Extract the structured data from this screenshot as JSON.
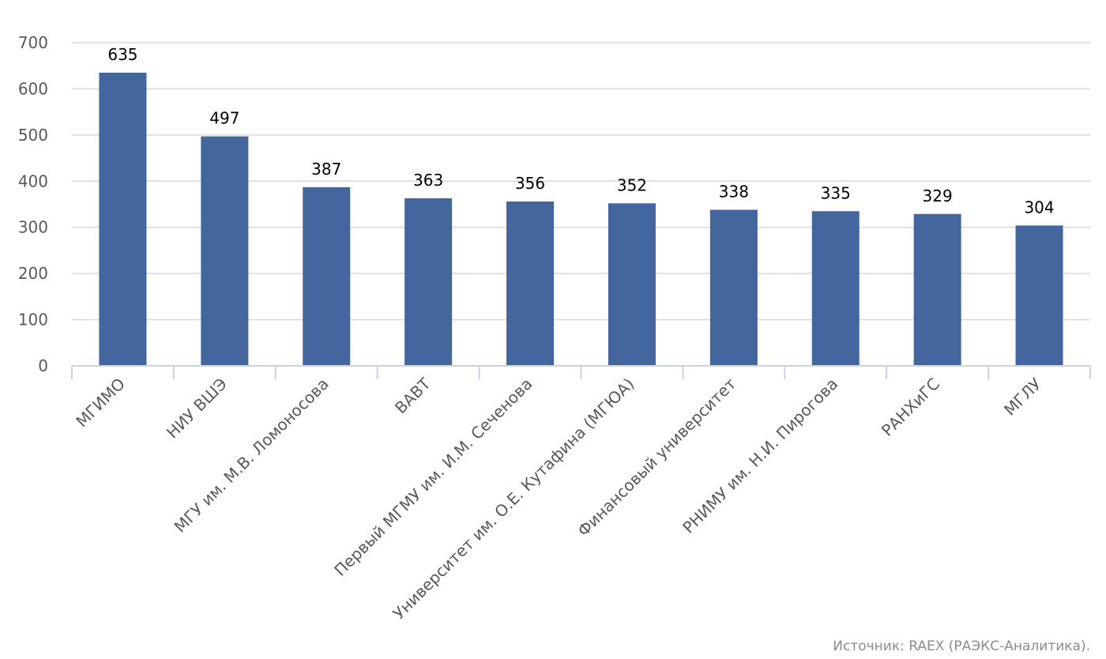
{
  "chart_data": {
    "type": "bar",
    "categories": [
      "МГИМО",
      "НИУ ВШЭ",
      "МГУ им. М.В. Ломоносова",
      "ВАВТ",
      "Первый МГМУ им. И.М. Сеченова",
      "Университет им. О.Е. Кутафина (МГЮА)",
      "Финансовый университет",
      "РНИМУ им. Н.И. Пирогова",
      "РАНХиГС",
      "МГЛУ"
    ],
    "values": [
      635,
      497,
      387,
      363,
      356,
      352,
      338,
      335,
      329,
      304
    ],
    "data_labels": [
      "635",
      "497",
      "387",
      "363",
      "356",
      "352",
      "338",
      "335",
      "329",
      "304"
    ],
    "ylim": [
      0,
      700
    ],
    "yticks": [
      0,
      100,
      200,
      300,
      400,
      500,
      600,
      700
    ],
    "grid": true,
    "legend": "none",
    "colors": {
      "bar": "#44669e",
      "grid": "#d9d9d9",
      "axis": "#c9d3e6"
    }
  },
  "source_text": "Источник: RAEX (РАЭКС-Аналитика)."
}
